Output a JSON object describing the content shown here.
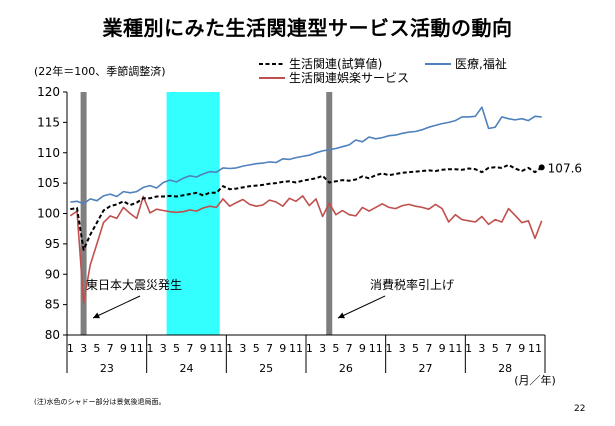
{
  "title": "業種別にみた生活関連型サービス活動の動向",
  "unit_note": "(22年＝100、季節調整済)",
  "footnote": "(注)水色のシャドー部分は景気後退局面。",
  "page_number": "22",
  "chart_data": {
    "type": "line",
    "x_start": "2011-01",
    "ylim": [
      80,
      120
    ],
    "yticks": [
      80,
      85,
      90,
      95,
      100,
      105,
      110,
      115,
      120
    ],
    "month_labels": [
      "1",
      "3",
      "5",
      "7",
      "9",
      "11"
    ],
    "year_labels": [
      "23",
      "24",
      "25",
      "26",
      "27",
      "28"
    ],
    "axis_unit": "(月／年)",
    "recession_shading": {
      "start": "2012-04",
      "end": "2012-11",
      "color": "#33ffff"
    },
    "events": [
      {
        "month": "2011-03",
        "label": "東日本大震災発生"
      },
      {
        "month": "2014-04",
        "label": "消費税率引上げ"
      }
    ],
    "end_label": "107.6",
    "series": [
      {
        "name": "生活関連(試算値)",
        "style": "dashed",
        "color": "#000000",
        "values": [
          100.7,
          100.9,
          94.0,
          96.5,
          98.5,
          100.5,
          101.2,
          101.5,
          102.0,
          101.4,
          101.8,
          102.5,
          102.5,
          102.8,
          102.8,
          102.9,
          102.8,
          103.0,
          103.2,
          103.4,
          103.0,
          103.4,
          103.4,
          104.5,
          104.0,
          104.1,
          104.3,
          104.5,
          104.6,
          104.7,
          104.9,
          105.0,
          105.2,
          105.3,
          105.1,
          105.4,
          105.6,
          105.8,
          106.2,
          105.1,
          105.3,
          105.5,
          105.4,
          105.6,
          106.1,
          105.8,
          106.3,
          106.6,
          106.3,
          106.5,
          106.7,
          106.8,
          106.9,
          107.0,
          107.1,
          107.0,
          107.2,
          107.3,
          107.3,
          107.2,
          107.4,
          107.3,
          106.8,
          107.5,
          107.6,
          107.5,
          108.0,
          107.4,
          107.0,
          107.5,
          106.8,
          107.6
        ]
      },
      {
        "name": "医療,福祉",
        "style": "solid",
        "color": "#4f81bd",
        "values": [
          101.9,
          102.0,
          101.6,
          102.4,
          102.1,
          102.9,
          103.2,
          102.8,
          103.6,
          103.4,
          103.6,
          104.3,
          104.6,
          104.2,
          105.1,
          105.5,
          105.2,
          105.8,
          106.2,
          106.0,
          106.5,
          106.9,
          106.8,
          107.5,
          107.4,
          107.5,
          107.8,
          108.0,
          108.2,
          108.3,
          108.5,
          108.4,
          109.0,
          108.9,
          109.2,
          109.4,
          109.6,
          110.0,
          110.3,
          110.5,
          110.7,
          111.0,
          111.3,
          112.1,
          111.8,
          112.6,
          112.3,
          112.5,
          112.8,
          112.9,
          113.2,
          113.4,
          113.5,
          113.8,
          114.2,
          114.5,
          114.8,
          115.0,
          115.3,
          115.9,
          115.9,
          116.0,
          117.5,
          114.0,
          114.2,
          115.9,
          115.6,
          115.4,
          115.6,
          115.3,
          116.0,
          115.9
        ]
      },
      {
        "name": "生活関連娯楽サービス",
        "style": "solid",
        "color": "#c0504d",
        "values": [
          99.6,
          100.4,
          85.3,
          91.5,
          95.0,
          98.5,
          99.6,
          99.2,
          101.0,
          100.0,
          99.2,
          102.8,
          100.1,
          100.7,
          100.5,
          100.3,
          100.2,
          100.3,
          100.6,
          100.4,
          100.9,
          101.2,
          101.0,
          102.4,
          101.2,
          101.8,
          102.3,
          101.5,
          101.2,
          101.4,
          102.2,
          101.9,
          101.2,
          102.5,
          102.0,
          102.9,
          101.3,
          102.4,
          99.5,
          101.7,
          99.8,
          100.5,
          99.8,
          99.6,
          101.0,
          100.4,
          101.0,
          101.6,
          101.0,
          100.8,
          101.3,
          101.5,
          101.2,
          101.0,
          100.7,
          101.5,
          100.8,
          98.6,
          99.8,
          99.0,
          98.8,
          98.6,
          99.5,
          98.2,
          99.0,
          98.6,
          100.8,
          99.7,
          98.5,
          98.8,
          95.9,
          98.8
        ]
      }
    ]
  }
}
